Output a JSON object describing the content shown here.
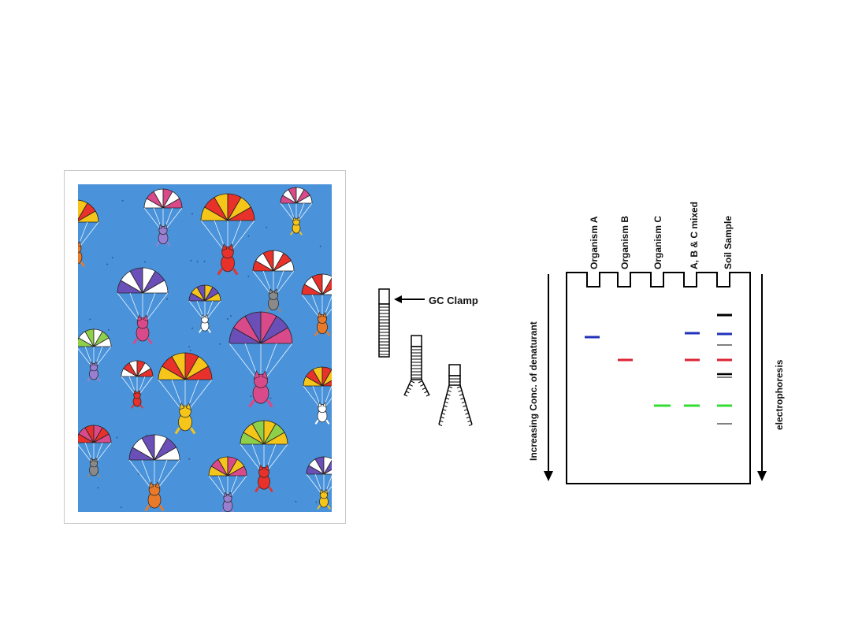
{
  "colors": {
    "sky": "#4a93db",
    "canopies": [
      "#e8312a",
      "#f5c51a",
      "#6b4fb8",
      "#8fd04a",
      "#ffffff",
      "#d94a8a"
    ],
    "band_a": "#2233bb",
    "band_b": "#dd2233",
    "band_c": "#33dd33",
    "band_black": "#000000"
  },
  "illustration": {
    "alt": "cats-parachuting-illustration"
  },
  "denaturation": {
    "gc_clamp_label": "GC Clamp"
  },
  "gel": {
    "lanes": [
      "Organism A",
      "Organism B",
      "Organism C",
      "A, B & C mixed",
      "Soil Sample"
    ],
    "left_axis_label": "Increasing Conc. of denaturant",
    "right_axis_label": "electrophoresis"
  }
}
